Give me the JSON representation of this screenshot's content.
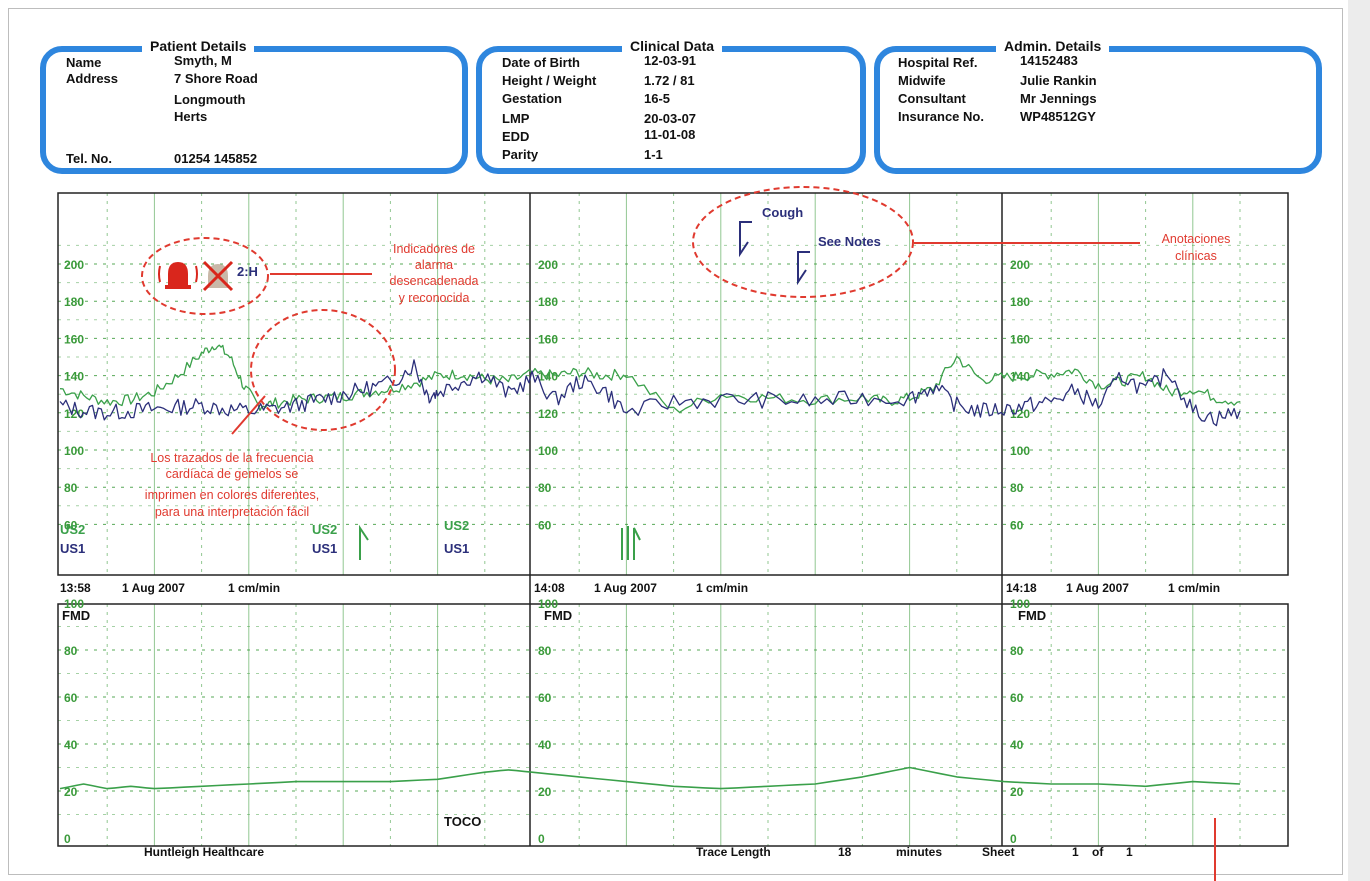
{
  "patient_details": {
    "title": "Patient Details",
    "rows": [
      {
        "label": "Name",
        "value": "Smyth, M"
      },
      {
        "label": "Address",
        "value": "7 Shore Road"
      },
      {
        "label": "",
        "value": "Longmouth"
      },
      {
        "label": "",
        "value": "Herts"
      },
      {
        "label": "Tel. No.",
        "value": "01254 145852"
      }
    ]
  },
  "clinical_data": {
    "title": "Clinical Data",
    "rows": [
      {
        "label": "Date of Birth",
        "value": "12-03-91"
      },
      {
        "label": "Height / Weight",
        "value": "1.72 / 81"
      },
      {
        "label": "Gestation",
        "value": "16-5"
      },
      {
        "label": "LMP",
        "value": "20-03-07"
      },
      {
        "label": "EDD",
        "value": "11-01-08"
      },
      {
        "label": "Parity",
        "value": "1-1"
      }
    ]
  },
  "admin_details": {
    "title": "Admin. Details",
    "rows": [
      {
        "label": "Hospital Ref.",
        "value": "14152483"
      },
      {
        "label": "Midwife",
        "value": "Julie Rankin"
      },
      {
        "label": "Consultant",
        "value": "Mr Jennings"
      },
      {
        "label": "Insurance No.",
        "value": "WP48512GY"
      }
    ]
  },
  "colors": {
    "grid": "#3a9a3a",
    "us1": "#2b2f7a",
    "us2": "#3aa04a",
    "accent": "#e03a2f",
    "box": "#2e86de"
  },
  "chart_data": [
    {
      "type": "line",
      "name": "fhr",
      "ylim": [
        50,
        210
      ],
      "yticks": [
        200,
        180,
        160,
        140,
        120,
        100,
        80,
        60
      ],
      "xlim_min": [
        0,
        28
      ],
      "series": [
        {
          "name": "US2",
          "x": [
            0,
            0.5,
            1,
            1.5,
            2,
            2.5,
            3,
            3.3,
            3.6,
            3.9,
            4.2,
            4.5,
            5,
            5.5,
            6,
            6.5,
            7,
            7.5,
            8,
            8.5,
            9,
            9.5,
            10,
            10.5,
            11,
            11.5,
            12,
            13,
            14,
            15,
            16,
            17,
            17.5,
            18,
            18.5,
            19,
            19.5,
            20,
            20.5,
            21,
            21.5,
            22,
            22.5,
            23,
            23.5,
            24,
            24.5,
            25
          ],
          "y": [
            133,
            129,
            126,
            127,
            131,
            140,
            152,
            157,
            150,
            134,
            124,
            125,
            127,
            128,
            129,
            131,
            133,
            136,
            140,
            141,
            138,
            137,
            141,
            140,
            142,
            140,
            141,
            121,
            130,
            128,
            127,
            128,
            126,
            128,
            133,
            150,
            138,
            139,
            140,
            141,
            143,
            135,
            137,
            140,
            131,
            133,
            128,
            126
          ]
        },
        {
          "name": "US1",
          "x": [
            0,
            0.5,
            1,
            1.5,
            2,
            2.5,
            3,
            3.5,
            4,
            4.5,
            5,
            5.5,
            6,
            6.5,
            7,
            7.5,
            7.8,
            8,
            8.5,
            9,
            9.5,
            10,
            10.5,
            11,
            11.5,
            12,
            13,
            14,
            15,
            16,
            17,
            18,
            18.5,
            19,
            19.5,
            20,
            20.5,
            21,
            21.5,
            22,
            22.5,
            23,
            23.5,
            24,
            24.5,
            25
          ],
          "y": [
            124,
            121,
            120,
            121,
            122,
            123,
            124,
            122,
            121,
            122,
            124,
            127,
            130,
            133,
            136,
            146,
            129,
            131,
            137,
            141,
            130,
            139,
            127,
            137,
            133,
            120,
            126,
            127,
            127,
            126,
            128,
            128,
            134,
            124,
            121,
            122,
            124,
            126,
            132,
            124,
            140,
            132,
            142,
            121,
            117,
            121
          ]
        }
      ]
    },
    {
      "type": "line",
      "name": "toco",
      "ylim": [
        0,
        100
      ],
      "yticks": [
        100,
        80,
        60,
        40,
        20,
        0
      ],
      "xlim_min": [
        0,
        28
      ],
      "series": [
        {
          "name": "TOCO",
          "x": [
            0,
            0.5,
            1,
            1.5,
            2,
            3,
            4,
            5,
            6,
            7,
            8,
            9,
            9.5,
            10,
            11,
            12,
            13,
            14,
            15,
            16,
            17,
            17.5,
            18,
            19,
            20,
            21,
            22,
            23,
            24,
            25
          ],
          "y": [
            21,
            23,
            21,
            22,
            21,
            22,
            23,
            24,
            24,
            24,
            25,
            28,
            29,
            28,
            26,
            24,
            22,
            21,
            22,
            23,
            26,
            28,
            30,
            26,
            24,
            23,
            23,
            22,
            24,
            23
          ]
        }
      ]
    }
  ],
  "sections": [
    {
      "time": "13:58",
      "date": "1 Aug 2007",
      "speed": "1 cm/min"
    },
    {
      "time": "14:08",
      "date": "1 Aug 2007",
      "speed": "1 cm/min"
    },
    {
      "time": "14:18",
      "date": "1 Aug 2007",
      "speed": "1 cm/min"
    }
  ],
  "trace_labels": {
    "us2": "US2",
    "us1": "US1",
    "fmd": "FMD",
    "toco": "TOCO",
    "alarm_code": "2:H"
  },
  "event_marks": {
    "cough": "Cough",
    "notes": "See Notes"
  },
  "annotations": {
    "alarm": [
      "Indicadores de",
      "alarma",
      "desencadenada",
      "y reconocida"
    ],
    "clinical": [
      "Anotaciones",
      "clínicas"
    ],
    "twins": [
      "Los trazados de la frecuencia",
      "cardíaca de gemelos se",
      "imprimen en colores diferentes,",
      "para una interpretación fácil"
    ]
  },
  "footer": {
    "brand": "Huntleigh Healthcare",
    "trace_length_label": "Trace Length",
    "trace_length_value": "18",
    "minutes": "minutes",
    "sheet_label": "Sheet",
    "sheet_value": "1",
    "of_label": "of",
    "sheet_total": "1"
  }
}
